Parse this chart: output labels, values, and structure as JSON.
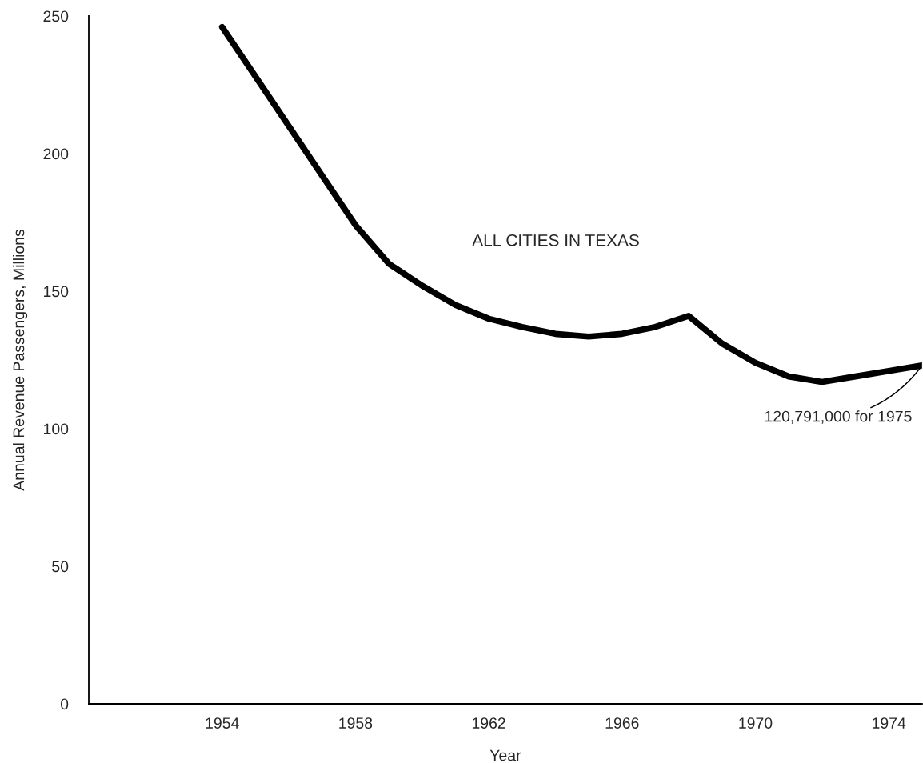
{
  "chart_data": {
    "type": "line",
    "xlabel": "Year",
    "ylabel": "Annual Revenue Passengers, Millions",
    "x": [
      1954,
      1955,
      1956,
      1957,
      1958,
      1959,
      1960,
      1961,
      1962,
      1963,
      1964,
      1965,
      1966,
      1967,
      1968,
      1969,
      1970,
      1971,
      1972,
      1973,
      1974,
      1975
    ],
    "series": [
      {
        "name": "ALL CITIES IN TEXAS",
        "color": "#000000",
        "values": [
          246,
          228,
          210,
          192,
          174,
          160,
          152,
          145,
          140,
          137,
          134.5,
          133.5,
          134.5,
          137,
          141,
          131,
          124,
          119,
          117,
          119,
          121,
          123
        ]
      }
    ],
    "xlim": [
      1950,
      1975
    ],
    "xticks": [
      1954,
      1958,
      1962,
      1966,
      1970,
      1974
    ],
    "ylim": [
      0,
      250
    ],
    "yticks": [
      0,
      50,
      100,
      150,
      200,
      250
    ],
    "annotations": [
      {
        "text": "120,791,000 for 1975",
        "x": 1975,
        "y": 123
      }
    ],
    "grid": false,
    "legend": false,
    "marker": "none",
    "line_style": "solid"
  }
}
